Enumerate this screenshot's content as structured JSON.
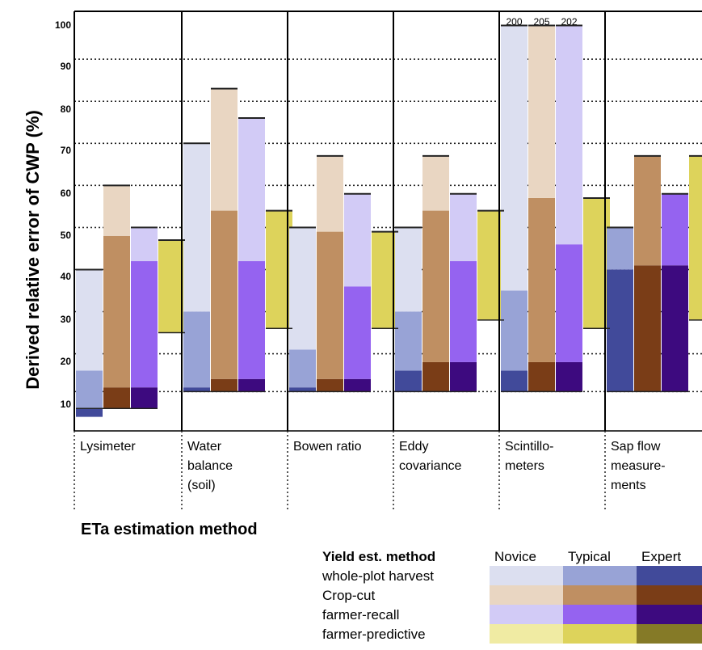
{
  "chart_data": {
    "type": "bar",
    "ylabel": "Derived relative error of CWP (%)",
    "xlabel": "ETa estimation method",
    "ylim": [
      3,
      100
    ],
    "yticks": [
      "10",
      "20",
      "30",
      "40",
      "50",
      "60",
      "70",
      "80",
      "90",
      "100"
    ],
    "categories": [
      [
        "Lysimeter"
      ],
      [
        "Water",
        "balance",
        "(soil)"
      ],
      [
        "Bowen ratio"
      ],
      [
        "Eddy",
        "covariance"
      ],
      [
        "Scintillo-",
        "meters"
      ],
      [
        "Sap flow",
        "measure-",
        "ments"
      ]
    ],
    "category_names": [
      "Lysimeter",
      "Water balance (soil)",
      "Bowen ratio",
      "Eddy covariance",
      "Scintillometers",
      "Sap flow measurements"
    ],
    "category_reference_lines": [
      9,
      13,
      13,
      13,
      13,
      13
    ],
    "series": [
      {
        "name": "whole-plot harvest",
        "values": [
          {
            "expert": [
              7,
              9
            ],
            "typical": [
              9,
              18
            ],
            "novice": [
              18,
              42
            ]
          },
          {
            "expert": [
              13,
              14
            ],
            "typical": [
              14,
              32
            ],
            "novice": [
              32,
              72
            ]
          },
          {
            "expert": [
              13,
              14
            ],
            "typical": [
              14,
              23
            ],
            "novice": [
              23,
              52
            ]
          },
          {
            "expert": [
              13,
              18
            ],
            "typical": [
              18,
              32
            ],
            "novice": [
              32,
              52
            ]
          },
          {
            "expert": [
              13,
              18
            ],
            "typical": [
              18,
              37
            ],
            "novice": [
              37,
              100
            ]
          },
          {
            "expert": [
              13,
              42
            ],
            "typical": [
              42,
              52
            ],
            "novice": [
              52,
              52
            ]
          }
        ]
      },
      {
        "name": "Crop-cut",
        "values": [
          {
            "expert": [
              9,
              14
            ],
            "typical": [
              14,
              50
            ],
            "novice": [
              50,
              62
            ]
          },
          {
            "expert": [
              13,
              16
            ],
            "typical": [
              16,
              56
            ],
            "novice": [
              56,
              85
            ]
          },
          {
            "expert": [
              13,
              16
            ],
            "typical": [
              16,
              51
            ],
            "novice": [
              51,
              69
            ]
          },
          {
            "expert": [
              13,
              20
            ],
            "typical": [
              20,
              56
            ],
            "novice": [
              56,
              69
            ]
          },
          {
            "expert": [
              13,
              20
            ],
            "typical": [
              20,
              59
            ],
            "novice": [
              59,
              100
            ]
          },
          {
            "expert": [
              13,
              43
            ],
            "typical": [
              43,
              69
            ],
            "novice": [
              69,
              69
            ]
          }
        ]
      },
      {
        "name": "farmer-recall",
        "values": [
          {
            "expert": [
              9,
              14
            ],
            "typical": [
              14,
              44
            ],
            "novice": [
              44,
              52
            ]
          },
          {
            "expert": [
              13,
              16
            ],
            "typical": [
              16,
              44
            ],
            "novice": [
              44,
              78
            ]
          },
          {
            "expert": [
              13,
              16
            ],
            "typical": [
              16,
              38
            ],
            "novice": [
              38,
              60
            ]
          },
          {
            "expert": [
              13,
              20
            ],
            "typical": [
              20,
              44
            ],
            "novice": [
              44,
              60
            ]
          },
          {
            "expert": [
              13,
              20
            ],
            "typical": [
              20,
              48
            ],
            "novice": [
              48,
              100
            ]
          },
          {
            "expert": [
              13,
              43
            ],
            "typical": [
              43,
              60
            ],
            "novice": [
              60,
              60
            ]
          }
        ]
      },
      {
        "name": "farmer-predictive",
        "values": [
          {
            "range": [
              27,
              49
            ]
          },
          {
            "range": [
              28,
              56
            ]
          },
          {
            "range": [
              28,
              51
            ]
          },
          {
            "range": [
              30,
              56
            ]
          },
          {
            "range": [
              28,
              59
            ]
          },
          {
            "range": [
              30,
              69
            ]
          }
        ]
      }
    ],
    "overflow_labels": [
      "200",
      "205",
      "202"
    ],
    "dotted_gridlines": [
      13,
      22,
      32,
      42,
      52,
      62,
      72,
      82,
      92
    ],
    "grid": true,
    "legend": {
      "position": "bottom-right",
      "title": "Yield est. method",
      "levels": [
        "Novice",
        "Typical",
        "Expert"
      ],
      "methods": [
        "whole-plot harvest",
        "Crop-cut",
        "farmer-recall",
        "farmer-predictive"
      ]
    },
    "colors": {
      "whole-plot harvest": [
        "#dcdff0",
        "#98a3d6",
        "#414a9a"
      ],
      "Crop-cut": [
        "#e9d6c2",
        "#bf8f62",
        "#7a3d17"
      ],
      "farmer-recall": [
        "#d2cbf6",
        "#9563f0",
        "#3d0a7f"
      ],
      "farmer-predictive": [
        "#f0eba3",
        "#ddd35b",
        "#857a27"
      ]
    }
  }
}
